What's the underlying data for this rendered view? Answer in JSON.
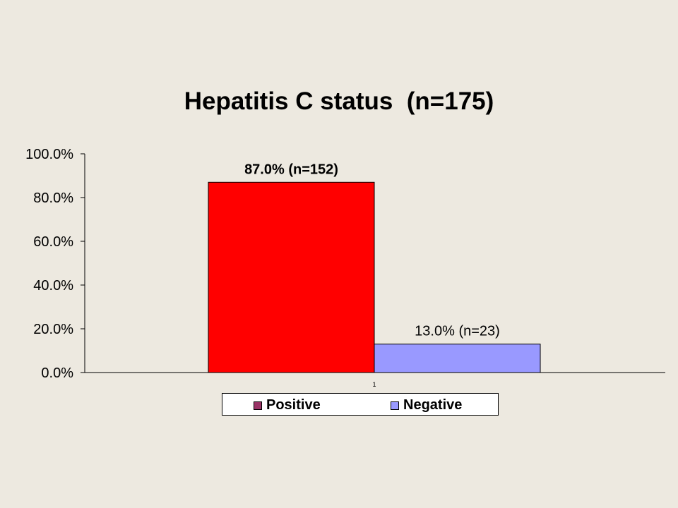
{
  "chart_data": {
    "type": "bar",
    "title": "Hepatitis C status  (n=175)",
    "categories": [
      "1"
    ],
    "series": [
      {
        "name": "Positive",
        "values": [
          87.0
        ],
        "label": "87.0% (n=152)",
        "color": "#ff0000",
        "legend_color": "#993366"
      },
      {
        "name": "Negative",
        "values": [
          13.0
        ],
        "label": "13.0%  (n=23)",
        "color": "#9999ff",
        "legend_color": "#9999ff"
      }
    ],
    "y_ticks": [
      "0.0%",
      "20.0%",
      "40.0%",
      "60.0%",
      "80.0%",
      "100.0%"
    ],
    "ylim": [
      0,
      100
    ],
    "grid": false,
    "legend": "bottom"
  }
}
